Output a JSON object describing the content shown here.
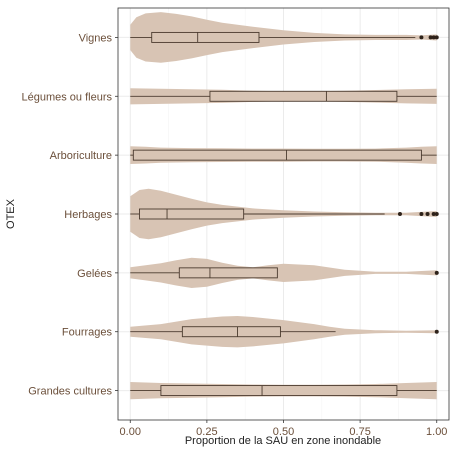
{
  "chart_data": {
    "type": "violin",
    "xlabel": "Proportion de la SAU en zone inondable",
    "ylabel": "OTEX",
    "xlim": [
      -0.04,
      1.04
    ],
    "xticks": [
      0.0,
      0.25,
      0.5,
      0.75,
      1.0
    ],
    "xtick_labels": [
      "0.00",
      "0.25",
      "0.50",
      "0.75",
      "1.00"
    ],
    "grid": true,
    "categories": [
      "Vignes",
      "Légumes ou fleurs",
      "Arboriculture",
      "Herbages",
      "Gelées",
      "Fourrages",
      "Grandes cultures"
    ],
    "boxes": [
      {
        "q1": 0.07,
        "median": 0.22,
        "q3": 0.42,
        "whisker_low": 0.0,
        "whisker_high": 0.93,
        "outliers": [
          0.95,
          0.98,
          0.99,
          1.0
        ]
      },
      {
        "q1": 0.26,
        "median": 0.64,
        "q3": 0.87,
        "whisker_low": 0.0,
        "whisker_high": 1.0,
        "outliers": []
      },
      {
        "q1": 0.01,
        "median": 0.51,
        "q3": 0.95,
        "whisker_low": 0.0,
        "whisker_high": 1.0,
        "outliers": []
      },
      {
        "q1": 0.03,
        "median": 0.12,
        "q3": 0.37,
        "whisker_low": 0.0,
        "whisker_high": 0.83,
        "outliers": [
          0.88,
          0.95,
          0.97,
          0.99,
          1.0
        ]
      },
      {
        "q1": 0.16,
        "median": 0.26,
        "q3": 0.48,
        "whisker_low": 0.0,
        "whisker_high": 0.48,
        "outliers": [
          1.0
        ]
      },
      {
        "q1": 0.17,
        "median": 0.35,
        "q3": 0.49,
        "whisker_low": 0.0,
        "whisker_high": 0.67,
        "outliers": [
          1.0
        ]
      },
      {
        "q1": 0.1,
        "median": 0.43,
        "q3": 0.87,
        "whisker_low": 0.0,
        "whisker_high": 1.0,
        "outliers": []
      }
    ],
    "violins": [
      {
        "x": [
          0.0,
          0.02,
          0.05,
          0.1,
          0.15,
          0.2,
          0.25,
          0.3,
          0.4,
          0.5,
          0.6,
          0.7,
          0.8,
          0.9,
          0.95,
          1.0
        ],
        "density": [
          0.5,
          0.8,
          0.95,
          1.0,
          0.93,
          0.83,
          0.7,
          0.58,
          0.42,
          0.28,
          0.18,
          0.12,
          0.1,
          0.1,
          0.08,
          0.12
        ]
      },
      {
        "x": [
          0.0,
          0.1,
          0.2,
          0.3,
          0.4,
          0.5,
          0.6,
          0.7,
          0.8,
          0.9,
          1.0
        ],
        "density": [
          0.32,
          0.3,
          0.28,
          0.26,
          0.22,
          0.2,
          0.2,
          0.22,
          0.25,
          0.28,
          0.3
        ]
      },
      {
        "x": [
          0.0,
          0.05,
          0.1,
          0.2,
          0.3,
          0.4,
          0.5,
          0.6,
          0.7,
          0.8,
          0.9,
          0.95,
          1.0
        ],
        "density": [
          0.35,
          0.33,
          0.3,
          0.28,
          0.27,
          0.26,
          0.26,
          0.25,
          0.25,
          0.26,
          0.3,
          0.33,
          0.35
        ]
      },
      {
        "x": [
          0.0,
          0.03,
          0.06,
          0.1,
          0.15,
          0.2,
          0.25,
          0.3,
          0.4,
          0.5,
          0.6,
          0.7,
          0.8,
          0.9,
          1.0
        ],
        "density": [
          0.7,
          0.95,
          1.0,
          0.92,
          0.76,
          0.6,
          0.46,
          0.36,
          0.22,
          0.15,
          0.1,
          0.07,
          0.05,
          0.05,
          0.12
        ]
      },
      {
        "x": [
          0.0,
          0.05,
          0.1,
          0.15,
          0.2,
          0.25,
          0.3,
          0.35,
          0.4,
          0.45,
          0.5,
          0.6,
          0.7,
          0.8,
          0.9,
          1.0
        ],
        "density": [
          0.22,
          0.3,
          0.38,
          0.5,
          0.6,
          0.55,
          0.4,
          0.28,
          0.22,
          0.3,
          0.36,
          0.3,
          0.12,
          0.04,
          0.04,
          0.1
        ]
      },
      {
        "x": [
          0.0,
          0.1,
          0.2,
          0.3,
          0.35,
          0.4,
          0.5,
          0.6,
          0.65,
          0.7,
          0.8,
          0.9,
          1.0
        ],
        "density": [
          0.2,
          0.3,
          0.5,
          0.6,
          0.62,
          0.58,
          0.46,
          0.3,
          0.2,
          0.12,
          0.06,
          0.04,
          0.06
        ]
      },
      {
        "x": [
          0.0,
          0.1,
          0.2,
          0.3,
          0.4,
          0.5,
          0.6,
          0.7,
          0.8,
          0.9,
          1.0
        ],
        "density": [
          0.34,
          0.3,
          0.28,
          0.26,
          0.24,
          0.23,
          0.23,
          0.24,
          0.26,
          0.3,
          0.34
        ]
      }
    ]
  }
}
